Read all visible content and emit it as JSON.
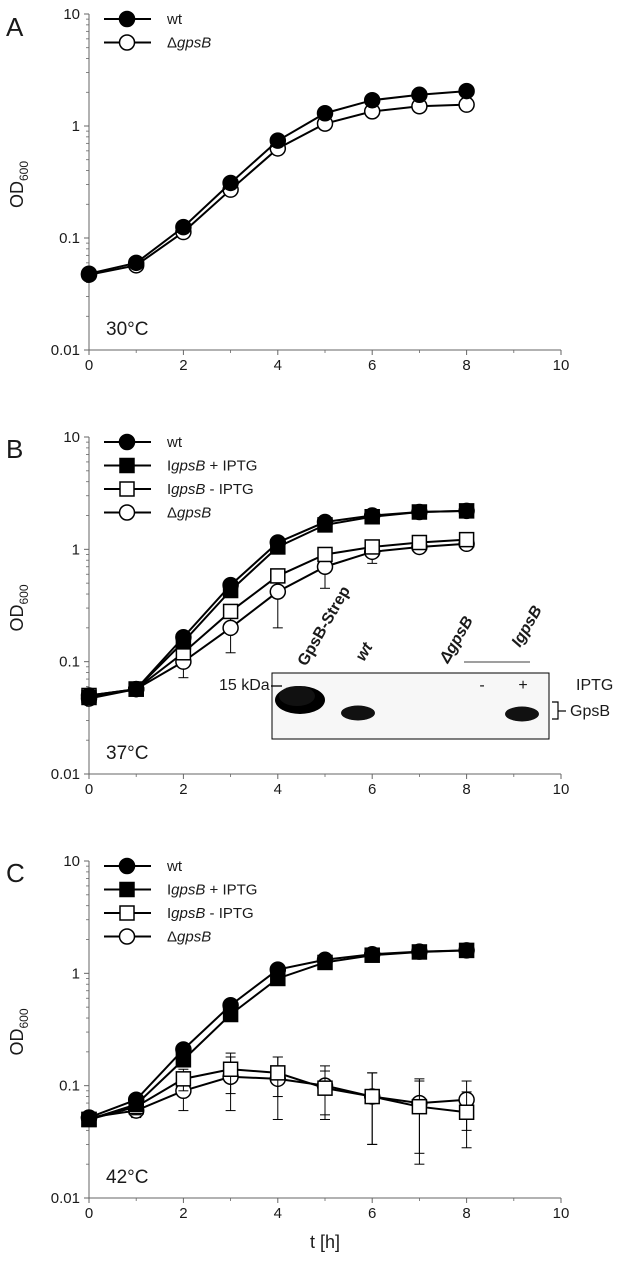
{
  "figure": {
    "x_axis_label": "t [h]",
    "panels": [
      {
        "letter": "A",
        "temperature": "30°C",
        "ylabel": {
          "main": "OD",
          "sub": "600"
        },
        "chart_data": {
          "type": "line",
          "xlim": [
            0,
            10
          ],
          "ylim": [
            0.01,
            10
          ],
          "yscale": "log",
          "x_ticks": [
            "0",
            "2",
            "4",
            "6",
            "8",
            "10"
          ],
          "y_ticks": [
            "0.01",
            "0.1",
            "1",
            "10"
          ],
          "legend_position": "top-left",
          "x": [
            0,
            1,
            2,
            3,
            4,
            5,
            6,
            7,
            8
          ],
          "series": [
            {
              "name": "wt",
              "marker": "filled-circle",
              "values": [
                0.048,
                0.06,
                0.125,
                0.31,
                0.74,
                1.3,
                1.7,
                1.9,
                2.05
              ],
              "err": [
                0,
                0,
                0,
                0,
                0,
                0,
                0,
                0,
                0
              ]
            },
            {
              "name": "ΔgpsB",
              "prefix": "Δ",
              "italic": "gpsB",
              "suffix": "",
              "marker": "open-circle",
              "values": [
                0.047,
                0.057,
                0.113,
                0.27,
                0.63,
                1.05,
                1.35,
                1.5,
                1.55
              ],
              "err": [
                0,
                0,
                0,
                0,
                0,
                0,
                0,
                0,
                0
              ]
            }
          ]
        }
      },
      {
        "letter": "B",
        "temperature": "37°C",
        "ylabel": {
          "main": "OD",
          "sub": "600"
        },
        "chart_data": {
          "type": "line",
          "xlim": [
            0,
            10
          ],
          "ylim": [
            0.01,
            10
          ],
          "yscale": "log",
          "x_ticks": [
            "0",
            "2",
            "4",
            "6",
            "8",
            "10"
          ],
          "y_ticks": [
            "0.01",
            "0.1",
            "1",
            "10"
          ],
          "legend_position": "top-left",
          "x": [
            0,
            1,
            2,
            3,
            4,
            5,
            6,
            7,
            8
          ],
          "series": [
            {
              "name": "wt",
              "marker": "filled-circle",
              "values": [
                0.05,
                0.057,
                0.165,
                0.48,
                1.15,
                1.75,
                2.0,
                2.15,
                2.2
              ],
              "err": [
                0,
                0,
                0,
                0,
                0,
                0,
                0,
                0,
                0
              ]
            },
            {
              "name": "IgpsB + IPTG",
              "prefix": "I",
              "italic": "gpsB",
              "suffix": " + IPTG",
              "marker": "filled-square",
              "values": [
                0.048,
                0.057,
                0.15,
                0.43,
                1.05,
                1.65,
                1.95,
                2.15,
                2.2
              ],
              "err": [
                0,
                0,
                0,
                0,
                0,
                0,
                0,
                0,
                0
              ]
            },
            {
              "name": "IgpsB - IPTG",
              "prefix": "I",
              "italic": "gpsB",
              "suffix": " - IPTG",
              "marker": "open-square",
              "values": [
                0.05,
                0.057,
                0.12,
                0.28,
                0.58,
                0.9,
                1.05,
                1.15,
                1.22
              ],
              "err": [
                0,
                0,
                0,
                0,
                0,
                0,
                0,
                0,
                0
              ]
            },
            {
              "name": "ΔgpsB",
              "prefix": "Δ",
              "italic": "gpsB",
              "suffix": "",
              "marker": "open-circle",
              "values": [
                0.047,
                0.057,
                0.1,
                0.2,
                0.42,
                0.7,
                0.95,
                1.05,
                1.12
              ],
              "err": [
                0,
                0,
                0.028,
                0.08,
                0.22,
                0.25,
                0.2,
                0.12,
                0.08
              ]
            }
          ]
        },
        "blot": {
          "lanes": [
            {
              "label": "GpsB-Strep",
              "italic": false
            },
            {
              "label": "wt",
              "italic": true
            },
            {
              "label": "ΔgpsB",
              "italic": true
            },
            {
              "label": "IgpsB",
              "italic": true
            }
          ],
          "iptg_label": "IPTG",
          "minus": "-",
          "plus": "+",
          "marker_label": "15 kDa",
          "band_label": "GpsB"
        }
      },
      {
        "letter": "C",
        "temperature": "42°C",
        "ylabel": {
          "main": "OD",
          "sub": "600"
        },
        "chart_data": {
          "type": "line",
          "xlim": [
            0,
            10
          ],
          "ylim": [
            0.01,
            10
          ],
          "yscale": "log",
          "x_ticks": [
            "0",
            "2",
            "4",
            "6",
            "8",
            "10"
          ],
          "y_ticks": [
            "0.01",
            "0.1",
            "1",
            "10"
          ],
          "legend_position": "top-left",
          "x": [
            0,
            1,
            2,
            3,
            4,
            5,
            6,
            7,
            8
          ],
          "series": [
            {
              "name": "wt",
              "marker": "filled-circle",
              "values": [
                0.052,
                0.075,
                0.21,
                0.52,
                1.08,
                1.32,
                1.48,
                1.56,
                1.6
              ],
              "err": [
                0,
                0,
                0,
                0,
                0,
                0,
                0,
                0,
                0
              ]
            },
            {
              "name": "IgpsB + IPTG",
              "prefix": "I",
              "italic": "gpsB",
              "suffix": " + IPTG",
              "marker": "filled-square",
              "values": [
                0.05,
                0.068,
                0.17,
                0.43,
                0.9,
                1.25,
                1.45,
                1.55,
                1.6
              ],
              "err": [
                0,
                0,
                0,
                0,
                0,
                0,
                0,
                0,
                0
              ]
            },
            {
              "name": "IgpsB - IPTG",
              "prefix": "I",
              "italic": "gpsB",
              "suffix": " - IPTG",
              "marker": "open-square",
              "values": [
                0.05,
                0.065,
                0.115,
                0.14,
                0.13,
                0.095,
                0.08,
                0.065,
                0.058
              ],
              "err": [
                0,
                0.01,
                0.025,
                0.055,
                0.05,
                0.04,
                0.05,
                0.045,
                0.03
              ]
            },
            {
              "name": "ΔgpsB",
              "prefix": "Δ",
              "italic": "gpsB",
              "suffix": "",
              "marker": "open-circle",
              "values": [
                0.052,
                0.06,
                0.09,
                0.12,
                0.115,
                0.1,
                0.08,
                0.07,
                0.075
              ],
              "err": [
                0,
                0.008,
                0.03,
                0.06,
                0.065,
                0.05,
                0.05,
                0.045,
                0.035
              ]
            }
          ]
        }
      }
    ]
  }
}
